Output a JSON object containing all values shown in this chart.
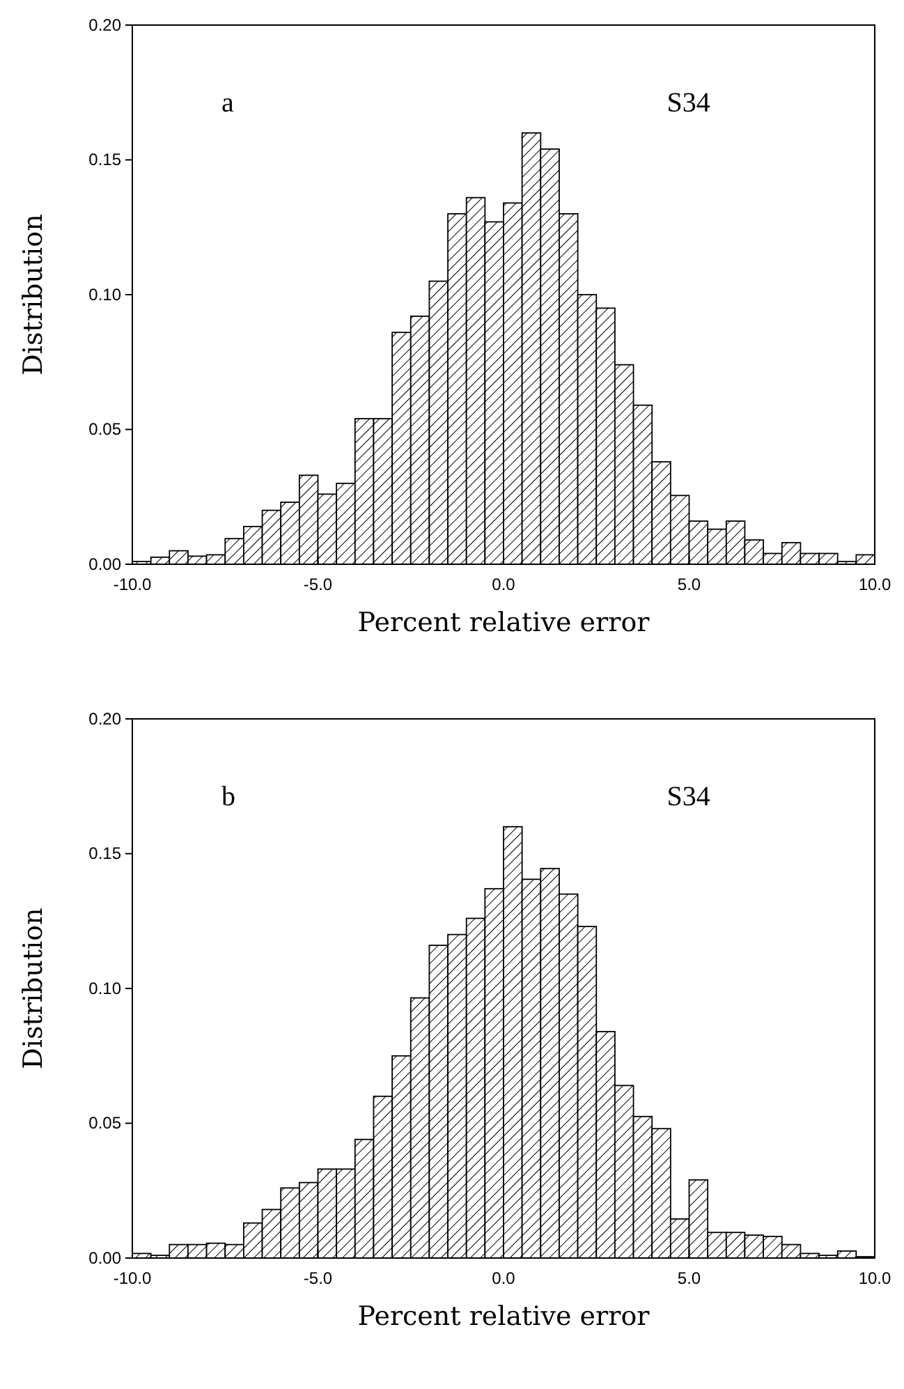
{
  "chart_data": [
    {
      "type": "histogram",
      "xlabel": "Percent relative error",
      "ylabel": "Distribution",
      "annotations": [
        "a",
        "S34"
      ],
      "color": "#000000",
      "bins": [
        -10,
        -9.5,
        -9,
        -8.5,
        -8,
        -7.5,
        -7,
        -6.5,
        -6,
        -5.5,
        -5,
        -4.5,
        -4,
        -3.5,
        -3,
        -2.5,
        -2,
        -1.5,
        -1,
        -0.5,
        0,
        0.5,
        1,
        1.5,
        2,
        2.5,
        3,
        3.5,
        4,
        4.5,
        5,
        5.5,
        6,
        6.5,
        7,
        7.5,
        8,
        8.5,
        9,
        9.5,
        10
      ],
      "values": [
        0.001,
        0.0026,
        0.005,
        0.003,
        0.0035,
        0.0095,
        0.014,
        0.02,
        0.023,
        0.033,
        0.026,
        0.03,
        0.054,
        0.054,
        0.086,
        0.092,
        0.105,
        0.13,
        0.136,
        0.127,
        0.134,
        0.16,
        0.154,
        0.13,
        0.1,
        0.095,
        0.074,
        0.059,
        0.038,
        0.0255,
        0.016,
        0.013,
        0.016,
        0.009,
        0.004,
        0.008,
        0.004,
        0.004,
        0.001,
        0.0035
      ],
      "xlim": [
        -10,
        10
      ],
      "xticks": [
        {
          "value": -10,
          "label": "-10.0"
        },
        {
          "value": -5,
          "label": "-5.0"
        },
        {
          "value": 0,
          "label": "0.0"
        },
        {
          "value": 5,
          "label": "5.0"
        },
        {
          "value": 10,
          "label": "10.0"
        }
      ],
      "ylim": [
        0,
        0.2
      ],
      "yticks": [
        {
          "value": 0,
          "label": "0.00"
        },
        {
          "value": 0.05,
          "label": "0.05"
        },
        {
          "value": 0.1,
          "label": "0.10"
        },
        {
          "value": 0.15,
          "label": "0.15"
        },
        {
          "value": 0.2,
          "label": "0.20"
        }
      ]
    },
    {
      "type": "histogram",
      "xlabel": "Percent relative error",
      "ylabel": "Distribution",
      "annotations": [
        "b",
        "S34"
      ],
      "color": "#000000",
      "bins": [
        -10,
        -9.5,
        -9,
        -8.5,
        -8,
        -7.5,
        -7,
        -6.5,
        -6,
        -5.5,
        -5,
        -4.5,
        -4,
        -3.5,
        -3,
        -2.5,
        -2,
        -1.5,
        -1,
        -0.5,
        0,
        0.5,
        1,
        1.5,
        2,
        2.5,
        3,
        3.5,
        4,
        4.5,
        5,
        5.5,
        6,
        6.5,
        7,
        7.5,
        8,
        8.5,
        9,
        9.5,
        10
      ],
      "values": [
        0.0017,
        0.001,
        0.005,
        0.005,
        0.0055,
        0.005,
        0.013,
        0.018,
        0.026,
        0.028,
        0.033,
        0.033,
        0.044,
        0.06,
        0.075,
        0.0965,
        0.116,
        0.12,
        0.126,
        0.137,
        0.16,
        0.1405,
        0.1445,
        0.135,
        0.123,
        0.084,
        0.064,
        0.0525,
        0.048,
        0.0145,
        0.029,
        0.0095,
        0.0095,
        0.0085,
        0.008,
        0.005,
        0.0017,
        0.001,
        0.0026,
        0.0005
      ],
      "xlim": [
        -10,
        10
      ],
      "xticks": [
        {
          "value": -10,
          "label": "-10.0"
        },
        {
          "value": -5,
          "label": "-5.0"
        },
        {
          "value": 0,
          "label": "0.0"
        },
        {
          "value": 5,
          "label": "5.0"
        },
        {
          "value": 10,
          "label": "10.0"
        }
      ],
      "ylim": [
        0,
        0.2
      ],
      "yticks": [
        {
          "value": 0,
          "label": "0.00"
        },
        {
          "value": 0.05,
          "label": "0.05"
        },
        {
          "value": 0.1,
          "label": "0.10"
        },
        {
          "value": 0.15,
          "label": "0.15"
        },
        {
          "value": 0.2,
          "label": "0.20"
        }
      ]
    }
  ]
}
